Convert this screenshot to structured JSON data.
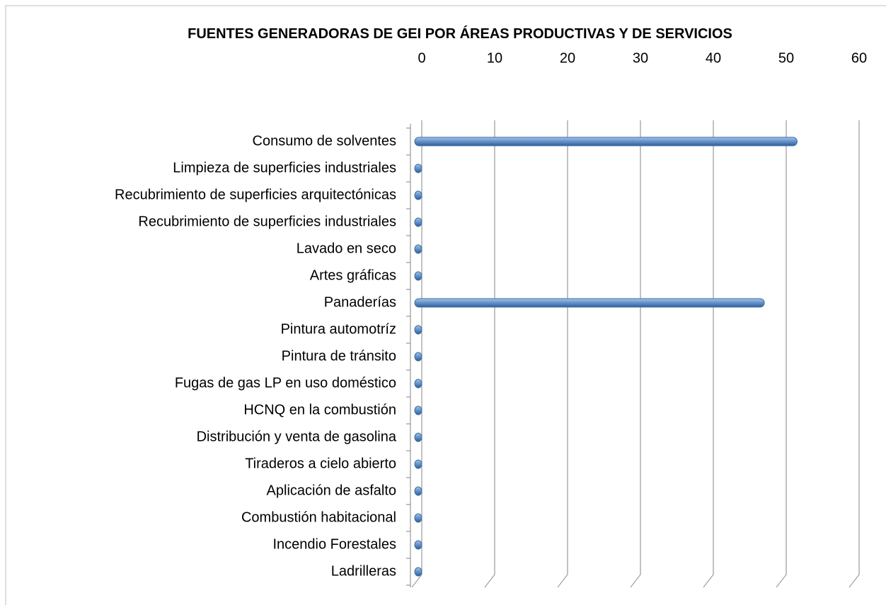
{
  "chart_data": {
    "type": "bar",
    "orientation": "horizontal",
    "title": "FUENTES GENERADORAS DE GEI POR ÁREAS PRODUCTIVAS Y DE SERVICIOS",
    "categories": [
      "Consumo de solventes",
      "Limpieza de superficies industriales",
      "Recubrimiento de superficies arquitectónicas",
      "Recubrimiento de superficies industriales",
      "Lavado en seco",
      "Artes gráficas",
      "Panaderías",
      "Pintura automotríz",
      "Pintura de tránsito",
      "Fugas de gas LP en uso doméstico",
      "HCNQ en la combustión",
      "Distribución y venta de gasolina",
      "Tiraderos a cielo abierto",
      "Aplicación de asfalto",
      "Combustión habitacional",
      "Incendio Forestales",
      "Ladrilleras"
    ],
    "values": [
      51.5,
      0,
      0,
      0,
      0,
      0,
      47,
      0,
      0,
      0,
      0,
      0,
      0,
      0,
      0,
      0,
      0
    ],
    "color": "#4f81bd",
    "xlim": [
      0,
      60
    ],
    "xticks": [
      0,
      10,
      20,
      30,
      40,
      50,
      60
    ],
    "grid": true
  }
}
